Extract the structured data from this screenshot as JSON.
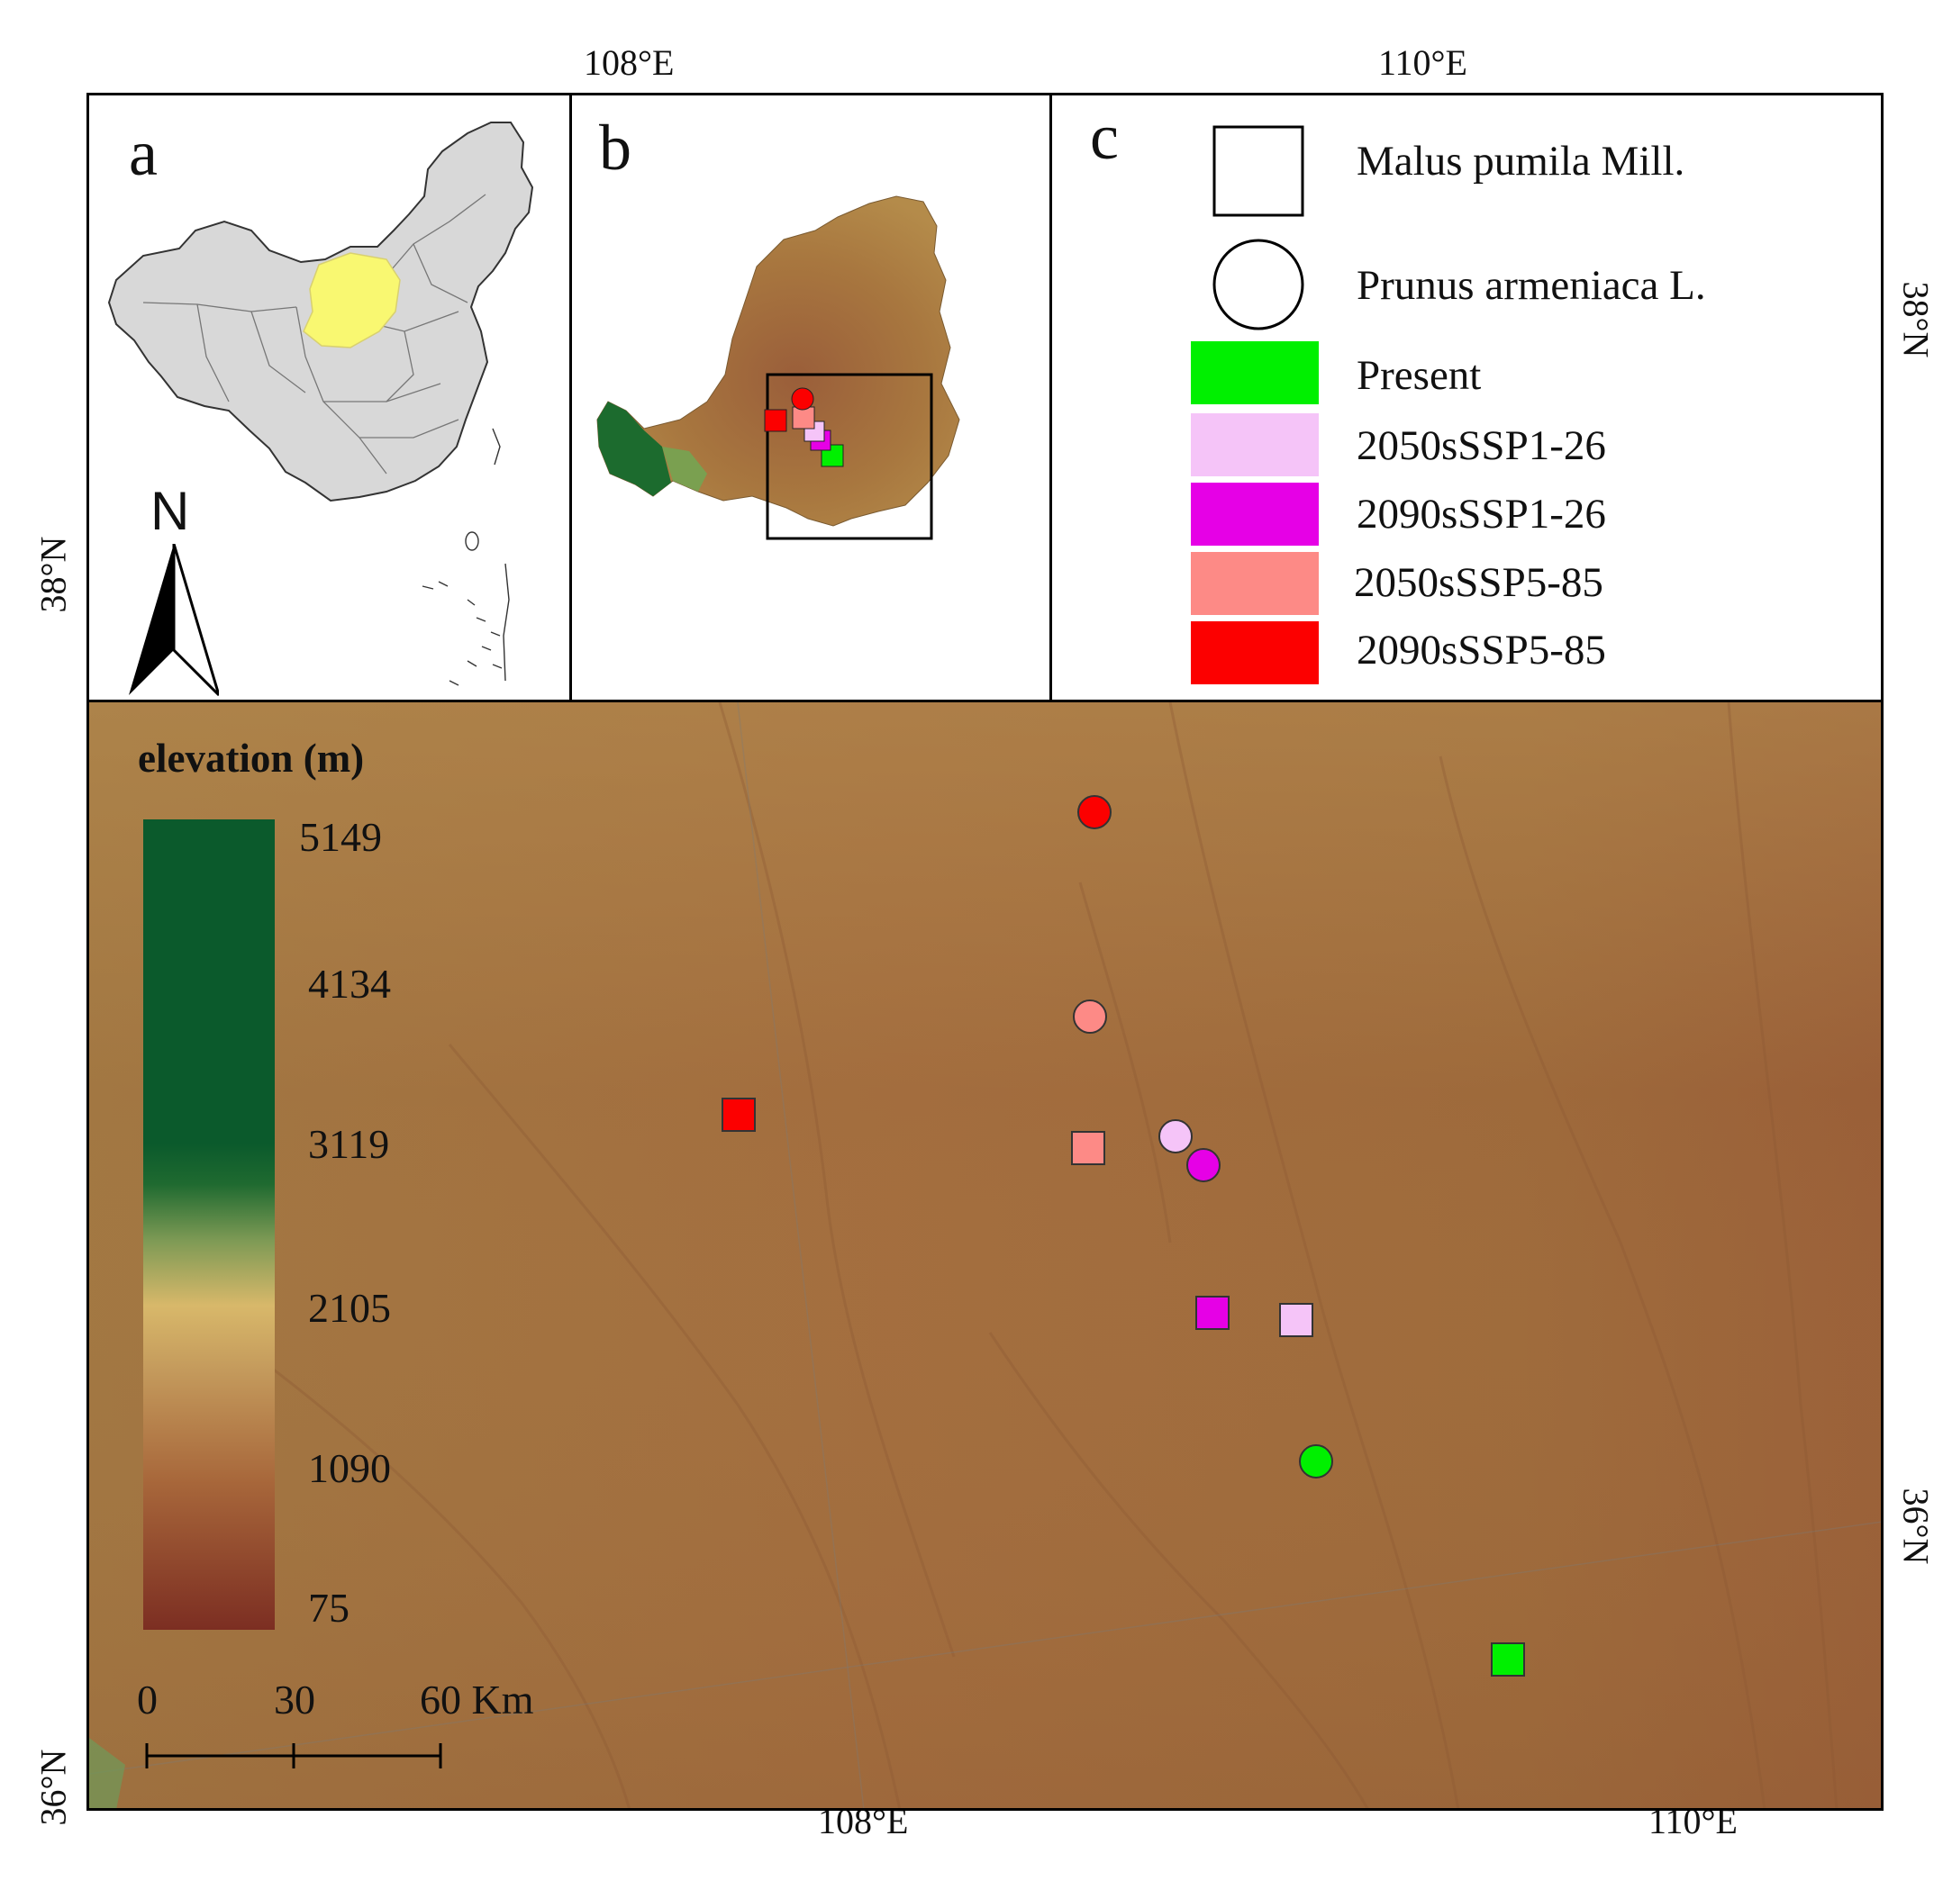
{
  "top_coords": {
    "lon_108": "108°E",
    "lon_110": "110°E",
    "lat_38": "38°N"
  },
  "bottom_coords": {
    "lon_108": "108°E",
    "lon_110": "110°E",
    "lat_36": "36°N"
  },
  "left_coords": {
    "lat_38": "38°N",
    "lat_36": "36°N"
  },
  "panels": {
    "a": "a",
    "b": "b",
    "c": "c"
  },
  "north_arrow": {
    "label": "N"
  },
  "legend": {
    "shapes": [
      {
        "shape": "square",
        "label": "Malus pumila Mill."
      },
      {
        "shape": "circle",
        "label": "Prunus armeniaca L."
      }
    ],
    "scenarios": [
      {
        "label": "Present",
        "color": "#00f000"
      },
      {
        "label": "2050sSSP1-26",
        "color": "#f5c4f8"
      },
      {
        "label": "2090sSSP1-26",
        "color": "#e600e6"
      },
      {
        "label": "2050sSSP5-85",
        "color": "#fd8a86"
      },
      {
        "label": "2090sSSP5-85",
        "color": "#fc0000"
      }
    ]
  },
  "elevation": {
    "title": "elevation (m)",
    "ticks": [
      "5149",
      "4134",
      "3119",
      "2105",
      "1090",
      "75"
    ]
  },
  "scale_bar": {
    "labels": [
      "0",
      "30",
      "60 Km"
    ]
  },
  "colors": {
    "study_area": "#f9f871",
    "china_fill": "#d8d8d8",
    "terrain": "#a6733f"
  }
}
